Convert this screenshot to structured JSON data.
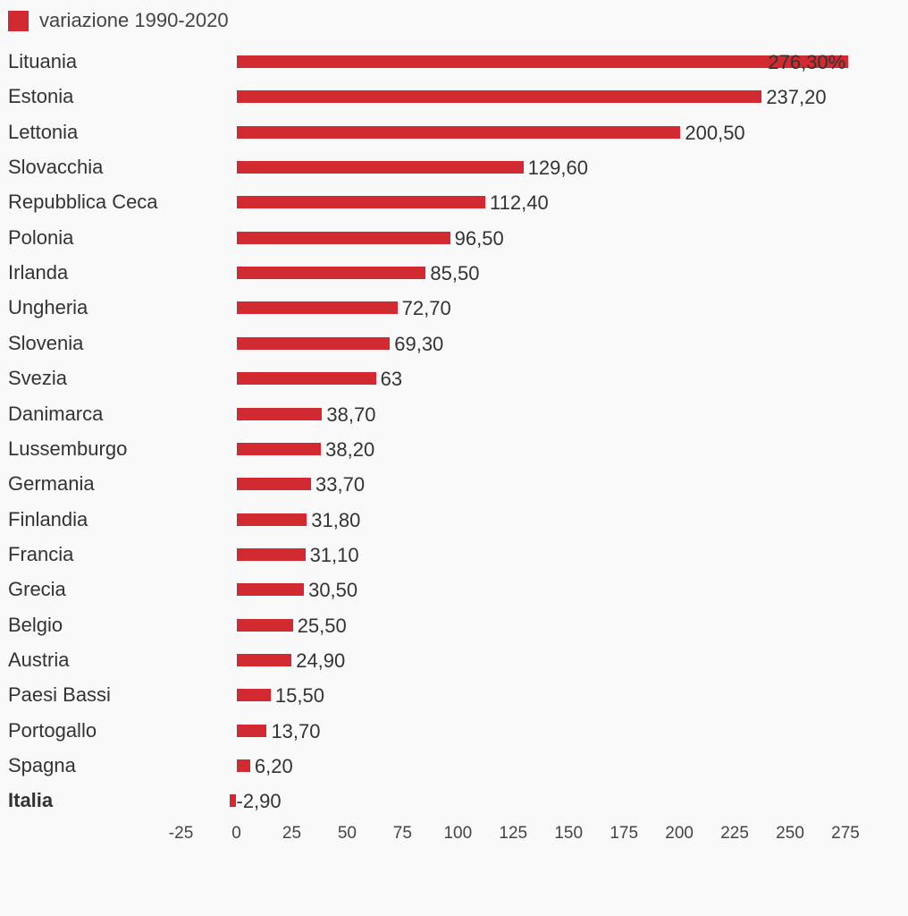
{
  "chart_data": {
    "type": "bar",
    "orientation": "horizontal",
    "legend": {
      "label": "variazione 1990-2020",
      "placement": "top-left"
    },
    "categories": [
      "Lituania",
      "Estonia",
      "Lettonia",
      "Slovacchia",
      "Repubblica Ceca",
      "Polonia",
      "Irlanda",
      "Ungheria",
      "Slovenia",
      "Svezia",
      "Danimarca",
      "Lussemburgo",
      "Germania",
      "Finlandia",
      "Francia",
      "Grecia",
      "Belgio",
      "Austria",
      "Paesi Bassi",
      "Portogallo",
      "Spagna",
      "Italia"
    ],
    "highlighted_category": "Italia",
    "values": [
      276.3,
      237.2,
      200.5,
      129.6,
      112.4,
      96.5,
      85.5,
      72.7,
      69.3,
      63,
      38.7,
      38.2,
      33.7,
      31.8,
      31.1,
      30.5,
      25.5,
      24.9,
      15.5,
      13.7,
      6.2,
      -2.9
    ],
    "value_labels": [
      "276,30%",
      "237,20",
      "200,50",
      "129,60",
      "112,40",
      "96,50",
      "85,50",
      "72,70",
      "69,30",
      "63",
      "38,70",
      "38,20",
      "33,70",
      "31,80",
      "31,10",
      "30,50",
      "25,50",
      "24,90",
      "15,50",
      "13,70",
      "6,20",
      "-2,90"
    ],
    "xlim": [
      -25,
      275
    ],
    "x_ticks": [
      "-25",
      "0",
      "25",
      "50",
      "75",
      "100",
      "125",
      "150",
      "175",
      "200",
      "225",
      "250",
      "275"
    ],
    "grid": false,
    "bar_color": "#d12a31"
  }
}
